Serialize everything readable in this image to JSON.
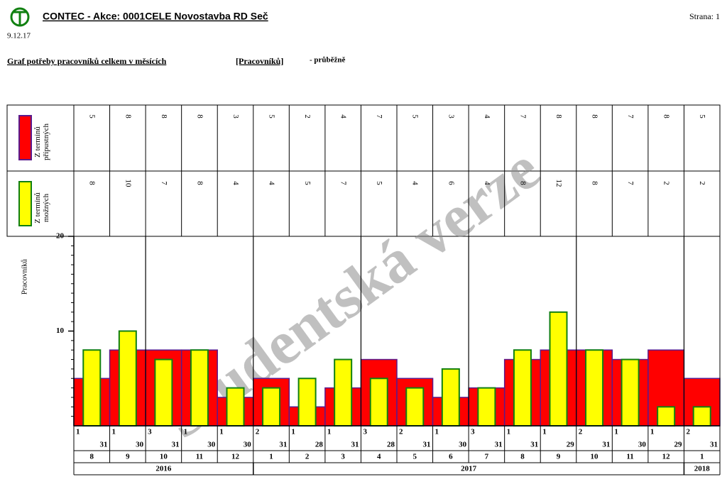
{
  "header": {
    "title": "CONTEC - Akce: 0001CELE Novostavba RD Seč",
    "page": "Strana: 1",
    "date": "9.12.17",
    "subtitle": "Graf potřeby pracovníků celkem v měsících",
    "unit": "[Pracovníků]",
    "note": "- průběžně"
  },
  "watermark": "Studentská verze",
  "chart_data": {
    "type": "bar",
    "y_label": "Pracovníků",
    "categories": [
      "8",
      "9",
      "10",
      "11",
      "12",
      "1",
      "2",
      "3",
      "4",
      "5",
      "6",
      "7",
      "8",
      "9",
      "10",
      "11",
      "12",
      "1"
    ],
    "period_start_days": [
      "1",
      "1",
      "3",
      "1",
      "1",
      "2",
      "1",
      "1",
      "3",
      "2",
      "1",
      "3",
      "1",
      "1",
      "2",
      "1",
      "1",
      "2"
    ],
    "period_end_days": [
      "31",
      "30",
      "31",
      "30",
      "30",
      "31",
      "28",
      "31",
      "28",
      "31",
      "30",
      "31",
      "31",
      "29",
      "31",
      "30",
      "29",
      "31"
    ],
    "years": [
      "2016",
      null,
      null,
      null,
      null,
      "2017",
      null,
      null,
      null,
      null,
      null,
      null,
      null,
      null,
      null,
      null,
      null,
      "2018"
    ],
    "series": [
      {
        "name": "Z termínů přípustných",
        "color": "#ff0000",
        "edge": "#5a1a8c",
        "values": [
          5,
          8,
          8,
          8,
          3,
          5,
          2,
          4,
          7,
          5,
          3,
          4,
          7,
          8,
          8,
          7,
          8,
          5
        ]
      },
      {
        "name": "Z termínů možných",
        "color": "#ffff00",
        "edge": "#118011",
        "values": [
          8,
          10,
          7,
          8,
          4,
          4,
          5,
          7,
          5,
          4,
          6,
          4,
          8,
          12,
          8,
          7,
          2,
          2
        ]
      }
    ],
    "ylim": [
      0,
      20
    ],
    "yticks": [
      10,
      20
    ],
    "minor_yticks": [
      1,
      2,
      3,
      4,
      5,
      6,
      7,
      8,
      9,
      11,
      12,
      13,
      14,
      15,
      16,
      17,
      18,
      19
    ]
  }
}
